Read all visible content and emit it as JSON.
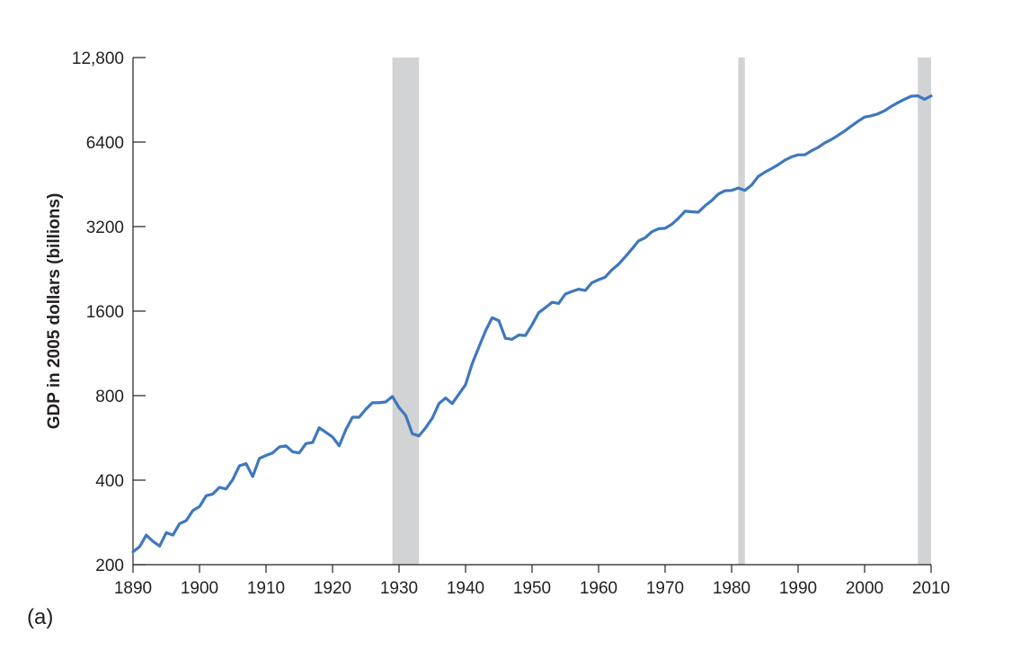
{
  "chart_data": {
    "type": "line",
    "panel_label": "(a)",
    "title": "",
    "xlabel": "",
    "ylabel": "GDP in 2005 dollars (billions)",
    "y_scale": "log2",
    "xlim": [
      1890,
      2010
    ],
    "ylim": [
      200,
      12800
    ],
    "x_ticks": [
      1890,
      1900,
      1910,
      1920,
      1930,
      1940,
      1950,
      1960,
      1970,
      1980,
      1990,
      2000,
      2010
    ],
    "x_tick_labels": [
      "1890",
      "1900",
      "1910",
      "1920",
      "1930",
      "1940",
      "1950",
      "1960",
      "1970",
      "1980",
      "1990",
      "2000",
      "2010"
    ],
    "y_ticks": [
      200,
      400,
      800,
      1600,
      3200,
      6400,
      12800
    ],
    "y_tick_labels": [
      "200",
      "400",
      "800",
      "1600",
      "3200",
      "6400",
      "12,800"
    ],
    "grid": false,
    "line_color": "#3e78bd",
    "band_color": "#d1d3d4",
    "shaded_periods": [
      {
        "start": 1929,
        "end": 1933
      },
      {
        "start": 1981,
        "end": 1982
      },
      {
        "start": 2008,
        "end": 2010
      }
    ],
    "series": [
      {
        "name": "",
        "x": [
          1890,
          1891,
          1892,
          1893,
          1894,
          1895,
          1896,
          1897,
          1898,
          1899,
          1900,
          1901,
          1902,
          1903,
          1904,
          1905,
          1906,
          1907,
          1908,
          1909,
          1910,
          1911,
          1912,
          1913,
          1914,
          1915,
          1916,
          1917,
          1918,
          1919,
          1920,
          1921,
          1922,
          1923,
          1924,
          1925,
          1926,
          1927,
          1928,
          1929,
          1930,
          1931,
          1932,
          1933,
          1934,
          1935,
          1936,
          1937,
          1938,
          1939,
          1940,
          1941,
          1942,
          1943,
          1944,
          1945,
          1946,
          1947,
          1948,
          1949,
          1950,
          1951,
          1952,
          1953,
          1954,
          1955,
          1956,
          1957,
          1958,
          1959,
          1960,
          1961,
          1962,
          1963,
          1964,
          1965,
          1966,
          1967,
          1968,
          1969,
          1970,
          1971,
          1972,
          1973,
          1974,
          1975,
          1976,
          1977,
          1978,
          1979,
          1980,
          1981,
          1982,
          1983,
          1984,
          1985,
          1986,
          1987,
          1988,
          1989,
          1990,
          1991,
          1992,
          1993,
          1994,
          1995,
          1996,
          1997,
          1998,
          1999,
          2000,
          2001,
          2002,
          2003,
          2004,
          2005,
          2006,
          2007,
          2008,
          2009,
          2010
        ],
        "values": [
          222,
          232,
          255,
          242,
          233,
          260,
          255,
          280,
          287,
          312,
          322,
          352,
          357,
          377,
          372,
          402,
          450,
          458,
          412,
          478,
          490,
          500,
          525,
          530,
          505,
          500,
          540,
          545,
          615,
          592,
          570,
          530,
          605,
          670,
          670,
          715,
          755,
          755,
          760,
          795,
          725,
          680,
          585,
          575,
          615,
          665,
          750,
          785,
          750,
          810,
          875,
          1040,
          1190,
          1360,
          1515,
          1480,
          1280,
          1270,
          1315,
          1310,
          1430,
          1580,
          1645,
          1720,
          1705,
          1840,
          1880,
          1915,
          1895,
          2020,
          2070,
          2115,
          2245,
          2350,
          2495,
          2660,
          2845,
          2920,
          3065,
          3145,
          3155,
          3260,
          3425,
          3630,
          3615,
          3600,
          3795,
          3960,
          4175,
          4295,
          4305,
          4390,
          4305,
          4495,
          4825,
          5000,
          5150,
          5315,
          5515,
          5665,
          5765,
          5765,
          5960,
          6125,
          6360,
          6535,
          6760,
          7010,
          7295,
          7590,
          7855,
          7935,
          8070,
          8270,
          8570,
          8840,
          9090,
          9325,
          9350,
          9090,
          9340
        ]
      }
    ]
  }
}
